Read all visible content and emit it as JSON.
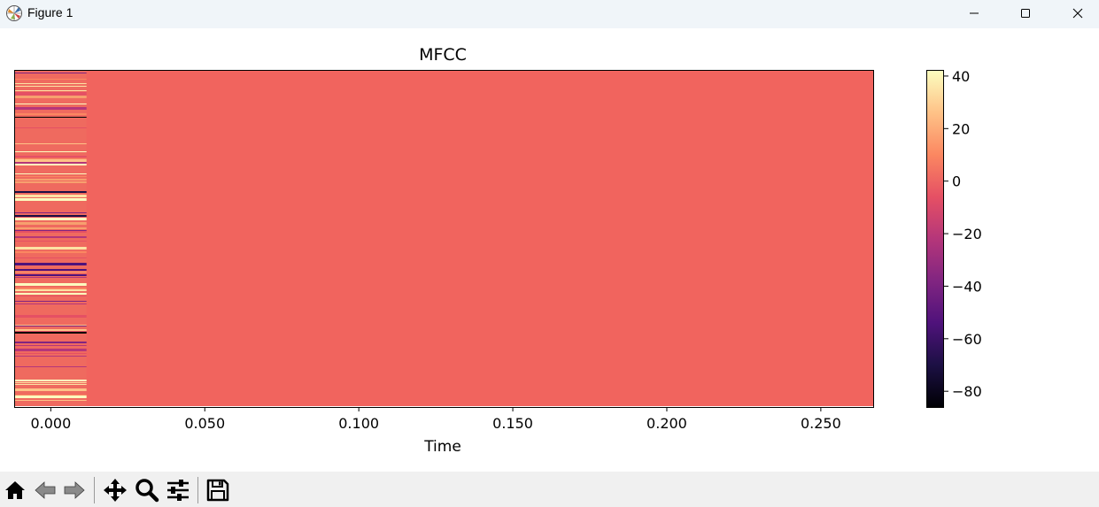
{
  "window": {
    "title": "Figure 1",
    "controls": [
      "minimize-icon",
      "maximize-icon",
      "close-icon"
    ]
  },
  "chart_data": {
    "type": "heatmap",
    "title": "MFCC",
    "xlabel": "Time",
    "ylabel": "",
    "x_ticks": [
      "0.000",
      "0.050",
      "0.100",
      "0.150",
      "0.200",
      "0.250"
    ],
    "x_tick_values": [
      0.0,
      0.05,
      0.1,
      0.15,
      0.2,
      0.25
    ],
    "xlim": [
      -0.0116,
      0.267
    ],
    "populated_x_range": [
      -0.0116,
      0.0116
    ],
    "fill_value": 0,
    "colormap": "magma",
    "colorbar": {
      "ticks": [
        "40",
        "20",
        "0",
        "−20",
        "−40",
        "−60",
        "−80"
      ],
      "tick_values": [
        40,
        20,
        0,
        -20,
        -40,
        -60,
        -80
      ],
      "vmin": -86,
      "vmax": 42
    }
  },
  "toolbar": {
    "buttons": [
      "home-icon",
      "back-icon",
      "forward-icon",
      "pan-icon",
      "zoom-icon",
      "configure-subplots-icon",
      "save-icon"
    ]
  }
}
